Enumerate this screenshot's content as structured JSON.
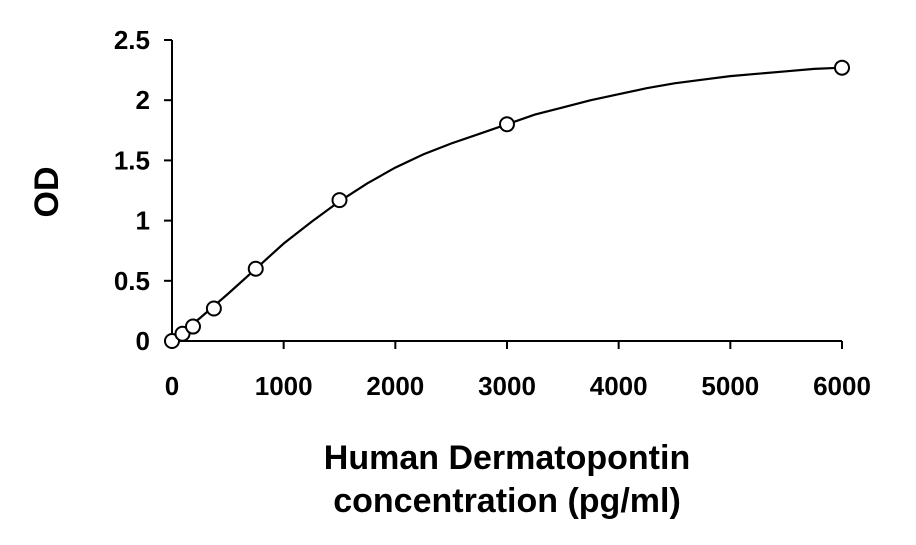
{
  "chart_data": {
    "type": "scatter",
    "title": "",
    "xlabel_lines": [
      "Human Dermatopontin",
      "concentration (pg/ml)"
    ],
    "ylabel": "OD",
    "xlim": [
      0,
      6000
    ],
    "ylim": [
      0,
      2.5
    ],
    "x_ticks": [
      0,
      1000,
      2000,
      3000,
      4000,
      5000,
      6000
    ],
    "x_tick_labels": [
      "0",
      "1000",
      "2000",
      "3000",
      "4000",
      "5000",
      "6000"
    ],
    "y_ticks": [
      0,
      0.5,
      1,
      1.5,
      2,
      2.5
    ],
    "y_tick_labels": [
      "0",
      "0.5",
      "1",
      "1.5",
      "2",
      "2.5"
    ],
    "grid": false,
    "legend": "none",
    "points": {
      "x": [
        0,
        94,
        188,
        375,
        750,
        1500,
        3000,
        6000
      ],
      "y": [
        0.0,
        0.06,
        0.12,
        0.27,
        0.6,
        1.17,
        1.8,
        2.27
      ]
    },
    "fit_curve": {
      "x": [
        0,
        250,
        500,
        750,
        1000,
        1250,
        1500,
        1750,
        2000,
        2250,
        2500,
        2750,
        3000,
        3250,
        3500,
        3750,
        4000,
        4250,
        4500,
        4750,
        5000,
        5250,
        5500,
        5750,
        6000
      ],
      "y": [
        0.0,
        0.19,
        0.39,
        0.6,
        0.81,
        0.99,
        1.16,
        1.31,
        1.44,
        1.55,
        1.64,
        1.72,
        1.8,
        1.88,
        1.94,
        2.0,
        2.05,
        2.1,
        2.14,
        2.17,
        2.2,
        2.22,
        2.24,
        2.26,
        2.27
      ]
    }
  }
}
